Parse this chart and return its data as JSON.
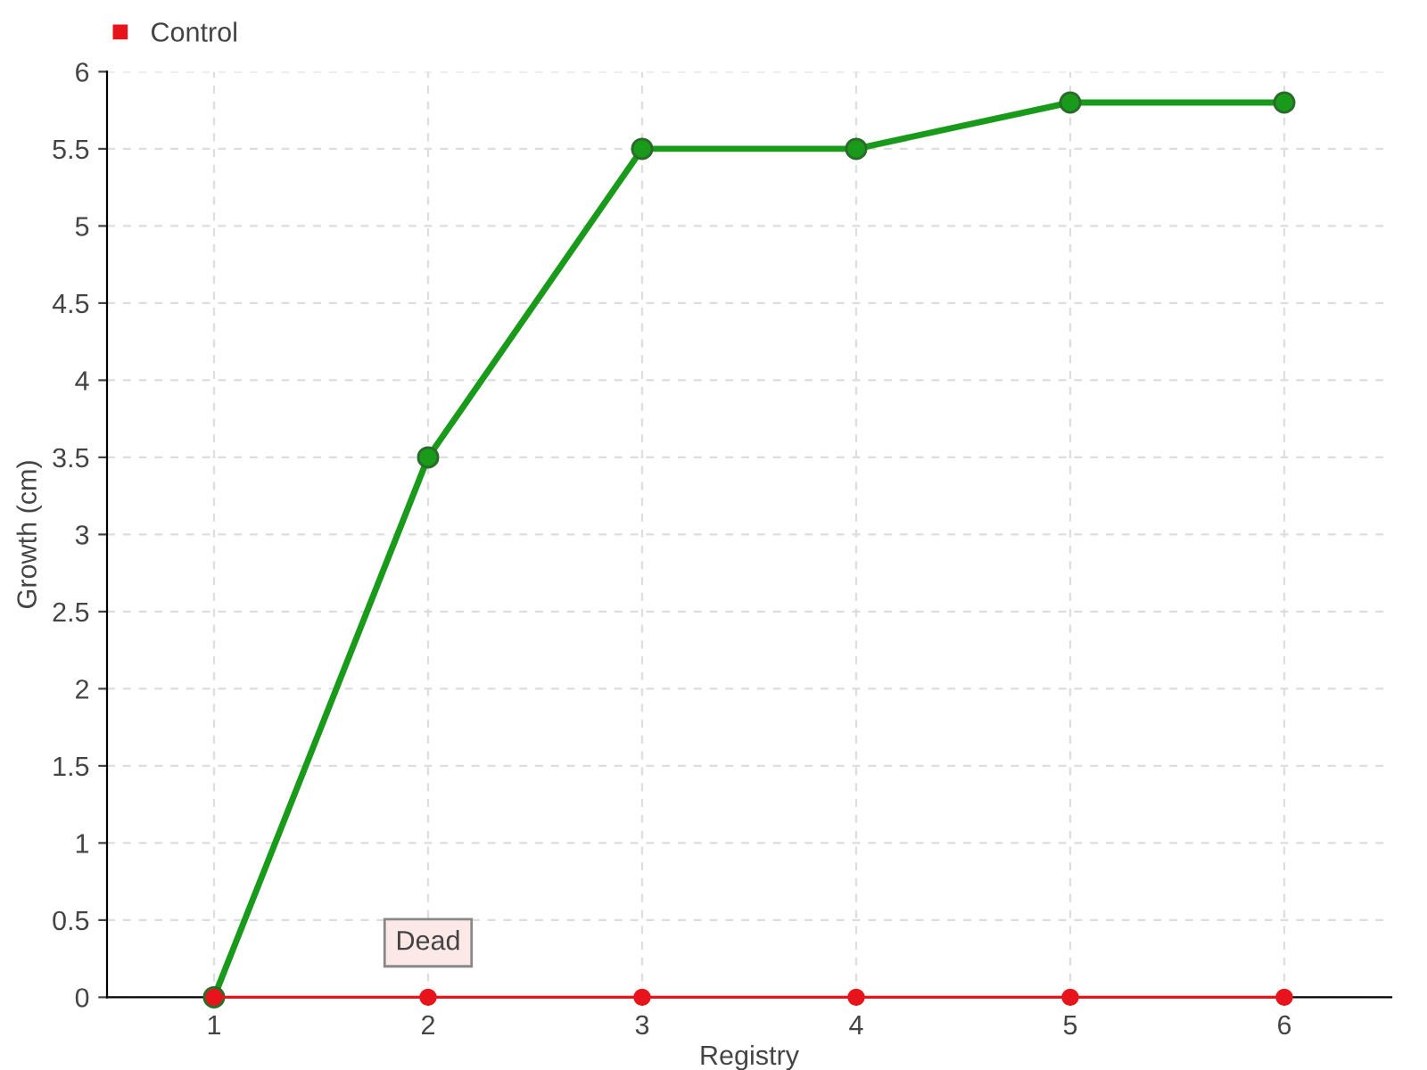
{
  "chart_data": {
    "type": "line",
    "xlabel": "Registry",
    "ylabel": "Growth (cm)",
    "x": [
      1,
      2,
      3,
      4,
      5,
      6
    ],
    "series": [
      {
        "color": "#1a9a1a",
        "values": [
          0,
          3.5,
          5.5,
          5.5,
          5.8,
          5.8
        ]
      },
      {
        "name": "Control",
        "color": "#e8141c",
        "values": [
          0,
          0,
          0,
          0,
          0,
          0
        ]
      }
    ],
    "xlim": [
      0.5,
      6.5
    ],
    "xticks": [
      1,
      2,
      3,
      4,
      5,
      6
    ],
    "ylim": [
      0,
      6
    ],
    "yticks": [
      0,
      0.5,
      1,
      1.5,
      2,
      2.5,
      3,
      3.5,
      4,
      4.5,
      5,
      5.5,
      6
    ],
    "grid": true,
    "legend": "top left",
    "marker": "circle",
    "line_style": "solid",
    "annotations": [
      {
        "text": "Dead",
        "x": 2,
        "y": 0
      }
    ]
  }
}
